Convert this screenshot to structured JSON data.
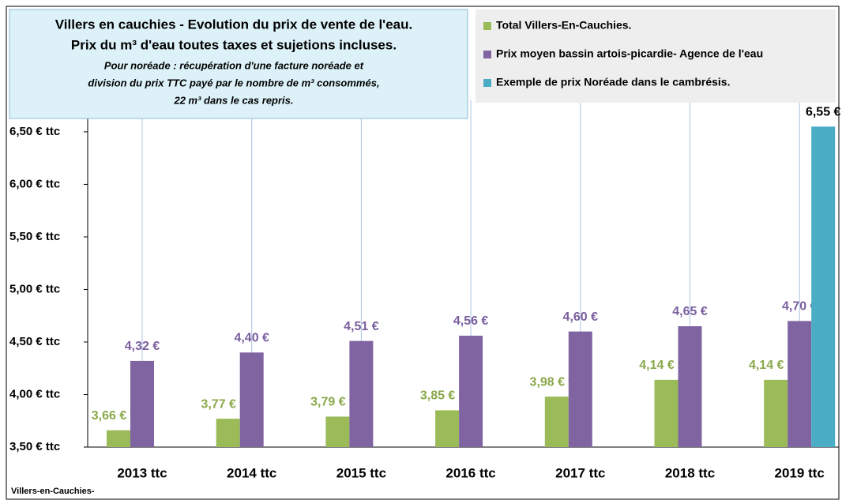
{
  "chart_data": {
    "type": "bar",
    "title": "Villers en cauchies - Evolution du prix de vente de l'eau.",
    "subtitle": "Prix du m³ d'eau toutes taxes et sujetions incluses.",
    "notes": [
      "Pour noréade : récupération d'une facture noréade et",
      "division du prix TTC payé par le nombre de m³ consommés,",
      "22 m³ dans le cas repris."
    ],
    "footer": "Villers-en-Cauchies-",
    "categories": [
      "2013 ttc",
      "2014 ttc",
      "2015 ttc",
      "2016 ttc",
      "2017 ttc",
      "2018 ttc",
      "2019 ttc"
    ],
    "series": [
      {
        "name": "Total Villers-En-Cauchies.",
        "color": "#9bbb59",
        "label_color": "#8aa84a",
        "values": [
          3.66,
          3.77,
          3.79,
          3.85,
          3.98,
          4.14,
          4.14
        ],
        "value_labels": [
          "3,66 € ttc",
          "3,77 € ttc",
          "3,79 € ttc",
          "3,85 € ttc",
          "3,98 € ttc",
          "4,14 € ttc",
          "4,14 € ttc"
        ]
      },
      {
        "name": "Prix moyen bassin artois-picardie- Agence de l'eau",
        "color": "#8064a2",
        "label_color": "#7a5f9e",
        "values": [
          4.32,
          4.4,
          4.51,
          4.56,
          4.6,
          4.65,
          4.7
        ],
        "value_labels": [
          "4,32 €",
          "4,40 €",
          "4,51 €",
          "4,56 €",
          "4,60 €",
          "4,65 €",
          "4,70 €"
        ]
      },
      {
        "name": "Exemple de prix Noréade dans le cambrésis.",
        "color": "#4bacc6",
        "label_color": "#000000",
        "values": [
          null,
          null,
          null,
          null,
          null,
          null,
          6.55
        ],
        "value_labels": [
          null,
          null,
          null,
          null,
          null,
          null,
          "6,55 €"
        ]
      }
    ],
    "ylim": [
      3.5,
      6.8
    ],
    "yticks": [
      {
        "value": 3.5,
        "label": "3,50 € ttc"
      },
      {
        "value": 4.0,
        "label": "4,00 € ttc"
      },
      {
        "value": 4.5,
        "label": "4,50 € ttc"
      },
      {
        "value": 5.0,
        "label": "5,00 € ttc"
      },
      {
        "value": 5.5,
        "label": "5,50 € ttc"
      },
      {
        "value": 6.0,
        "label": "6,00 € ttc"
      },
      {
        "value": 6.5,
        "label": "6,50 € ttc"
      }
    ],
    "vertical_grid": true
  }
}
